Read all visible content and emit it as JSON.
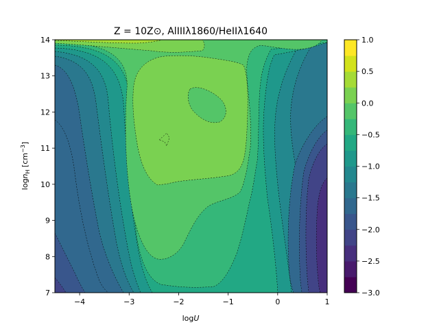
{
  "chart_data": {
    "type": "contour",
    "title": "Z = 10Z⊙, AlIIIλ1860/HeIIλ1640",
    "xlabel": "logU",
    "ylabel": "logn_H [cm^-3]",
    "xlim": [
      -4.5,
      1.0
    ],
    "ylim": [
      7.0,
      14.0
    ],
    "xticks": [
      "−4",
      "−3",
      "−2",
      "−1",
      "0",
      "1"
    ],
    "yticks": [
      "7",
      "8",
      "9",
      "10",
      "11",
      "12",
      "13",
      "14"
    ],
    "colorbar": {
      "range": [
        -3.0,
        1.0
      ],
      "levels": [
        -3.0,
        -2.75,
        -2.5,
        -2.25,
        -2.0,
        -1.75,
        -1.5,
        -1.25,
        -1.0,
        -0.75,
        -0.5,
        -0.25,
        0.0,
        0.25,
        0.5,
        0.75,
        1.0
      ],
      "ticks": [
        "−3.0",
        "−2.5",
        "−2.0",
        "−1.5",
        "−1.0",
        "−0.5",
        "0.0",
        "0.5",
        "1.0"
      ],
      "colormap": "viridis"
    },
    "grid": false
  },
  "colors": {
    "band_colors": [
      "#440154",
      "#481a6c",
      "#472f7d",
      "#414487",
      "#39568c",
      "#31688e",
      "#2a788e",
      "#23888e",
      "#1f988b",
      "#22a884",
      "#35b779",
      "#54c568",
      "#7ad151",
      "#a5db36",
      "#d2e21b",
      "#fde725"
    ]
  }
}
